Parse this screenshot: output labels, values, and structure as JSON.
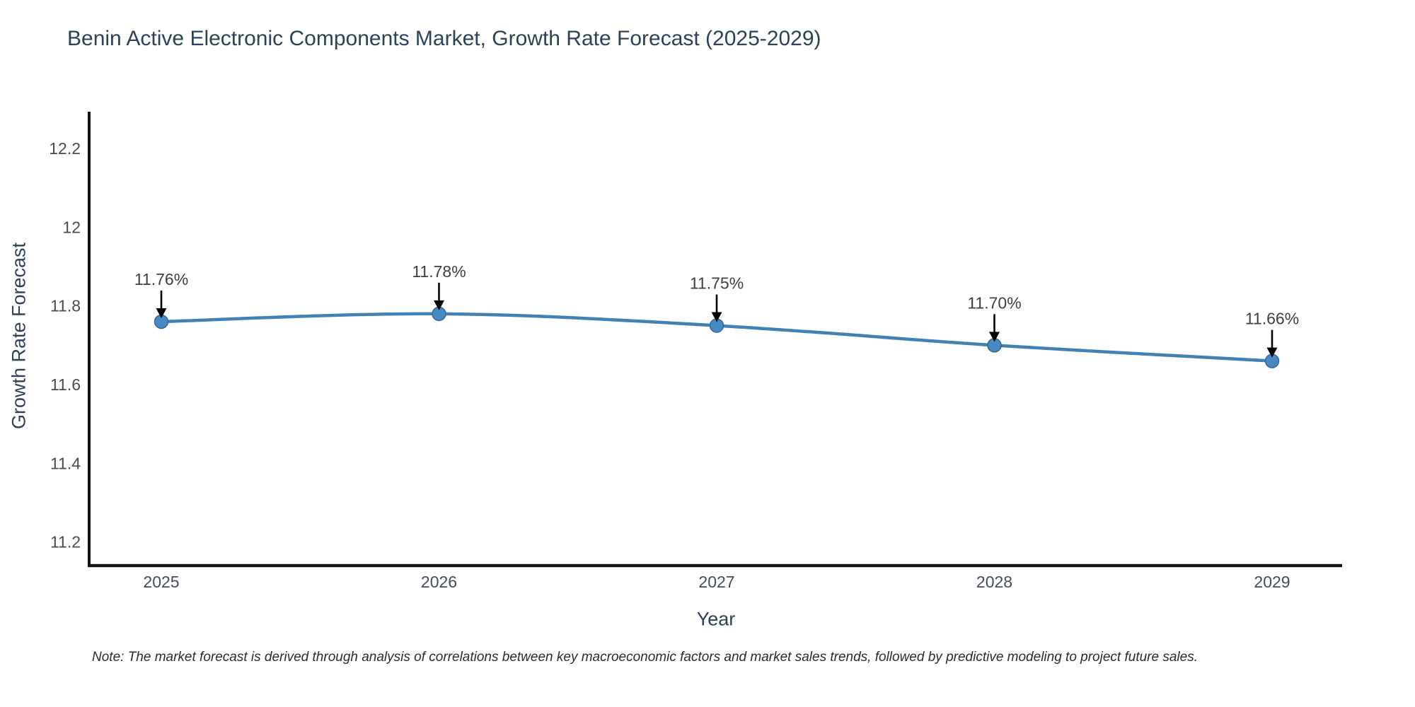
{
  "chart_data": {
    "type": "line",
    "title": "Benin Active Electronic Components Market, Growth Rate Forecast (2025-2029)",
    "xlabel": "Year",
    "ylabel": "Growth Rate Forecast",
    "categories": [
      "2025",
      "2026",
      "2027",
      "2028",
      "2029"
    ],
    "values": [
      11.76,
      11.78,
      11.75,
      11.7,
      11.66
    ],
    "point_labels": [
      "11.76%",
      "11.78%",
      "11.75%",
      "11.70%",
      "11.66%"
    ],
    "ytick_values": [
      11.2,
      11.4,
      11.6,
      11.8,
      12.0,
      12.2
    ],
    "ytick_labels": [
      "11.2",
      "11.4",
      "11.6",
      "11.8",
      "12",
      "12.2"
    ],
    "ylim": [
      11.14,
      12.29
    ],
    "line_shape": "spline",
    "grid": false,
    "legend_position": "none",
    "colors": {
      "line": "#4182b4",
      "marker": "#4789c0",
      "marker_edge": "#35699a",
      "axis_line": "#141414",
      "tick_label": "#444d56",
      "annotation_text": "#3b4046",
      "annotation_arrow": "#000000"
    }
  },
  "footnote": {
    "text": "Note: The market forecast is derived through analysis of correlations between key macroeconomic factors and market sales trends, followed by predictive modeling to project future sales."
  }
}
